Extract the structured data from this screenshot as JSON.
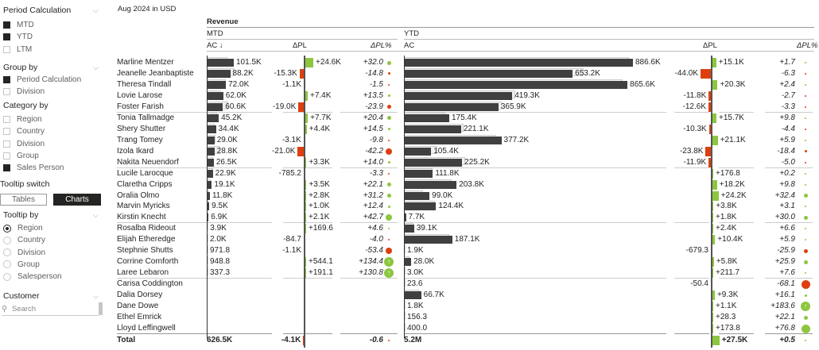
{
  "sidebar": {
    "period_calc": {
      "title": "Period Calculation",
      "items": [
        {
          "label": "MTD",
          "checked": true
        },
        {
          "label": "YTD",
          "checked": true
        },
        {
          "label": "LTM",
          "checked": false
        }
      ]
    },
    "group_by": {
      "title": "Group by",
      "items": [
        {
          "label": "Period Calculation",
          "checked": true
        },
        {
          "label": "Division",
          "checked": false
        }
      ]
    },
    "category_by": {
      "title": "Category by",
      "items": [
        {
          "label": "Region",
          "checked": false
        },
        {
          "label": "Country",
          "checked": false
        },
        {
          "label": "Division",
          "checked": false
        },
        {
          "label": "Group",
          "checked": false
        },
        {
          "label": "Sales Person",
          "checked": true
        }
      ]
    },
    "tooltip_switch": {
      "title": "Tooltip switch",
      "tables": "Tables",
      "charts": "Charts",
      "selected": "Charts"
    },
    "tooltip_by": {
      "title": "Tooltip by",
      "items": [
        {
          "label": "Region",
          "checked": true
        },
        {
          "label": "Country",
          "checked": false
        },
        {
          "label": "Division",
          "checked": false
        },
        {
          "label": "Group",
          "checked": false
        },
        {
          "label": "Salesperson",
          "checked": false
        }
      ]
    },
    "customer": {
      "title": "Customer",
      "search_placeholder": "Search"
    }
  },
  "report": {
    "subtitle": "Aug 2024 in USD",
    "measure": "Revenue",
    "mtd": "MTD",
    "ytd": "YTD",
    "col_ac_sorted": "AC ↓",
    "col_ac": "AC",
    "col_dpl": "ΔPL",
    "col_dplpct": "ΔPL%"
  },
  "colors": {
    "positive": "#8cc63f",
    "negative": "#dd3f0f",
    "bar": "#404040"
  },
  "rows": [
    {
      "name": "Marline Mentzer",
      "mtd": [
        "101.5K",
        "+24.6K",
        "+32.0"
      ],
      "ytd": [
        "886.6K",
        "+15.1K",
        "+1.7"
      ]
    },
    {
      "name": "Jeanelle Jeanbaptiste",
      "mtd": [
        "88.2K",
        "-15.3K",
        "-14.8"
      ],
      "ytd": [
        "653.2K",
        "-44.0K",
        "-6.3"
      ]
    },
    {
      "name": "Theresa Tindall",
      "mtd": [
        "72.0K",
        "-1.1K",
        "-1.5"
      ],
      "ytd": [
        "865.6K",
        "+20.3K",
        "+2.4"
      ]
    },
    {
      "name": "Lovie Larose",
      "mtd": [
        "62.0K",
        "+7.4K",
        "+13.5"
      ],
      "ytd": [
        "419.3K",
        "-11.8K",
        "-2.7"
      ]
    },
    {
      "name": "Foster Farish",
      "mtd": [
        "60.6K",
        "-19.0K",
        "-23.9"
      ],
      "ytd": [
        "365.9K",
        "-12.6K",
        "-3.3"
      ]
    },
    {
      "name": "Tonia Tallmadge",
      "mtd": [
        "45.2K",
        "+7.7K",
        "+20.4"
      ],
      "ytd": [
        "175.4K",
        "+15.7K",
        "+9.8"
      ]
    },
    {
      "name": "Shery Shutter",
      "mtd": [
        "34.4K",
        "+4.4K",
        "+14.5"
      ],
      "ytd": [
        "221.1K",
        "-10.3K",
        "-4.4"
      ]
    },
    {
      "name": "Trang Tomey",
      "mtd": [
        "29.0K",
        "-3.1K",
        "-9.8"
      ],
      "ytd": [
        "377.2K",
        "+21.1K",
        "+5.9"
      ]
    },
    {
      "name": "Izola Ikard",
      "mtd": [
        "28.8K",
        "-21.0K",
        "-42.2"
      ],
      "ytd": [
        "105.4K",
        "-23.8K",
        "-18.4"
      ]
    },
    {
      "name": "Nakita Neuendorf",
      "mtd": [
        "26.5K",
        "+3.3K",
        "+14.0"
      ],
      "ytd": [
        "225.2K",
        "-11.9K",
        "-5.0"
      ]
    },
    {
      "name": "Lucile Larocque",
      "mtd": [
        "22.9K",
        "-785.2",
        "-3.3"
      ],
      "ytd": [
        "111.8K",
        "+176.8",
        "+0.2"
      ]
    },
    {
      "name": "Claretha Cripps",
      "mtd": [
        "19.1K",
        "+3.5K",
        "+22.1"
      ],
      "ytd": [
        "203.8K",
        "+18.2K",
        "+9.8"
      ]
    },
    {
      "name": "Oralia Olmo",
      "mtd": [
        "11.8K",
        "+2.8K",
        "+31.2"
      ],
      "ytd": [
        "99.0K",
        "+24.2K",
        "+32.4"
      ]
    },
    {
      "name": "Marvin Myricks",
      "mtd": [
        "9.5K",
        "+1.0K",
        "+12.4"
      ],
      "ytd": [
        "124.4K",
        "+3.8K",
        "+3.1"
      ]
    },
    {
      "name": "Kirstin Knecht",
      "mtd": [
        "6.9K",
        "+2.1K",
        "+42.7"
      ],
      "ytd": [
        "7.7K",
        "+1.8K",
        "+30.0"
      ]
    },
    {
      "name": "Rosalba Rideout",
      "mtd": [
        "3.9K",
        "+169.6",
        "+4.6"
      ],
      "ytd": [
        "39.1K",
        "+2.4K",
        "+6.6"
      ]
    },
    {
      "name": "Elijah Etheredge",
      "mtd": [
        "2.0K",
        "-84.7",
        "-4.0"
      ],
      "ytd": [
        "187.1K",
        "+10.4K",
        "+5.9"
      ]
    },
    {
      "name": "Stephnie Shutts",
      "mtd": [
        "971.8",
        "-1.1K",
        "-53.4"
      ],
      "ytd": [
        "1.9K",
        "-679.3",
        "-25.9"
      ]
    },
    {
      "name": "Corrine Cornforth",
      "mtd": [
        "948.8",
        "+544.1",
        "+134.4"
      ],
      "ytd": [
        "28.0K",
        "+5.8K",
        "+25.9"
      ]
    },
    {
      "name": "Laree Lebaron",
      "mtd": [
        "337.3",
        "+191.1",
        "+130.8"
      ],
      "ytd": [
        "3.0K",
        "+211.7",
        "+7.6"
      ]
    },
    {
      "name": "Carisa Coddington",
      "mtd": [
        "",
        "",
        ""
      ],
      "ytd": [
        "23.6",
        "-50.4",
        "-68.1"
      ]
    },
    {
      "name": "Dalia Dorsey",
      "mtd": [
        "",
        "",
        ""
      ],
      "ytd": [
        "66.7K",
        "+9.3K",
        "+16.1"
      ]
    },
    {
      "name": "Dane Dowe",
      "mtd": [
        "",
        "",
        ""
      ],
      "ytd": [
        "1.8K",
        "+1.1K",
        "+183.6"
      ]
    },
    {
      "name": "Ethel Emrick",
      "mtd": [
        "",
        "",
        ""
      ],
      "ytd": [
        "156.3",
        "+28.3",
        "+22.1"
      ]
    },
    {
      "name": "Lloyd Leffingwell",
      "mtd": [
        "",
        "",
        ""
      ],
      "ytd": [
        "400.0",
        "+173.8",
        "+76.8"
      ]
    }
  ],
  "total": {
    "name": "Total",
    "mtd": [
      "626.5K",
      "-4.1K",
      "-0.6"
    ],
    "ytd": [
      "5.2M",
      "+27.5K",
      "+0.5"
    ]
  }
}
